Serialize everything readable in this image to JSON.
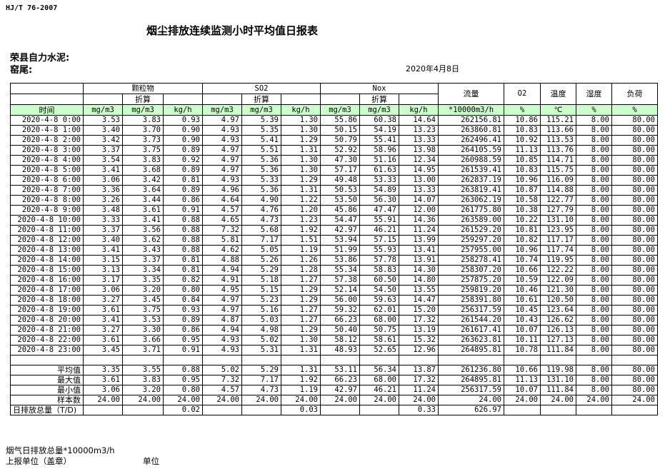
{
  "standard": "HJ/T  76-2007",
  "title": "烟尘排放连续监测小时平均值日报表",
  "company": "荣县自力水泥:",
  "kiln": "窑尾:",
  "date": "2020年4月8日",
  "header": {
    "particulate": "颗粒物",
    "so2": "SO2",
    "nox": "Nox",
    "converted": "折算",
    "flow": "流量",
    "o2": "O2",
    "temperature": "温度",
    "humidity": "湿度",
    "load": "负荷",
    "time": "时间",
    "units": [
      "mg/m3",
      "mg/m3",
      "kg/h",
      "mg/m3",
      "mg/m3",
      "kg/h",
      "mg/m3",
      "mg/m3",
      "kg/h",
      "*10000m3/h",
      "%",
      "℃",
      "%",
      "%"
    ]
  },
  "rows": [
    [
      "2020-4-8 0:00",
      "3.53",
      "3.83",
      "0.93",
      "4.97",
      "5.39",
      "1.30",
      "55.86",
      "60.38",
      "14.64",
      "262156.81",
      "10.86",
      "115.21",
      "8.00",
      "80.00"
    ],
    [
      "2020-4-8 1:00",
      "3.40",
      "3.70",
      "0.90",
      "4.93",
      "5.35",
      "1.30",
      "50.15",
      "54.19",
      "13.23",
      "263860.81",
      "10.83",
      "113.66",
      "8.00",
      "80.00"
    ],
    [
      "2020-4-8 2:00",
      "3.42",
      "3.73",
      "0.90",
      "4.93",
      "5.41",
      "1.29",
      "50.79",
      "55.41",
      "13.33",
      "262496.41",
      "10.92",
      "113.53",
      "8.00",
      "80.00"
    ],
    [
      "2020-4-8 3:00",
      "3.37",
      "3.75",
      "0.89",
      "4.97",
      "5.51",
      "1.31",
      "52.92",
      "58.96",
      "13.98",
      "264105.59",
      "11.13",
      "113.76",
      "8.00",
      "80.00"
    ],
    [
      "2020-4-8 4:00",
      "3.54",
      "3.83",
      "0.92",
      "4.97",
      "5.36",
      "1.30",
      "47.30",
      "51.16",
      "12.34",
      "260988.59",
      "10.85",
      "114.71",
      "8.00",
      "80.00"
    ],
    [
      "2020-4-8 5:00",
      "3.41",
      "3.68",
      "0.89",
      "4.97",
      "5.36",
      "1.30",
      "57.17",
      "61.63",
      "14.95",
      "261539.41",
      "10.83",
      "115.75",
      "8.00",
      "80.00"
    ],
    [
      "2020-4-8 6:00",
      "3.06",
      "3.42",
      "0.81",
      "4.93",
      "5.33",
      "1.29",
      "49.48",
      "53.33",
      "13.00",
      "262837.19",
      "10.96",
      "116.09",
      "8.00",
      "80.00"
    ],
    [
      "2020-4-8 7:00",
      "3.36",
      "3.64",
      "0.89",
      "4.96",
      "5.36",
      "1.31",
      "50.53",
      "54.89",
      "13.33",
      "263819.41",
      "10.87",
      "114.88",
      "8.00",
      "80.00"
    ],
    [
      "2020-4-8 8:00",
      "3.26",
      "3.44",
      "0.86",
      "4.64",
      "4.90",
      "1.22",
      "53.50",
      "56.30",
      "14.07",
      "263062.19",
      "10.58",
      "122.77",
      "8.00",
      "80.00"
    ],
    [
      "2020-4-8 9:00",
      "3.48",
      "3.61",
      "0.91",
      "4.57",
      "4.76",
      "1.20",
      "45.86",
      "47.47",
      "12.00",
      "261775.80",
      "10.38",
      "127.79",
      "8.00",
      "80.00"
    ],
    [
      "2020-4-8 10:00",
      "3.33",
      "3.41",
      "0.88",
      "4.65",
      "4.73",
      "1.23",
      "54.47",
      "55.91",
      "14.36",
      "263589.00",
      "10.22",
      "131.10",
      "8.00",
      "80.00"
    ],
    [
      "2020-4-8 11:00",
      "3.37",
      "3.56",
      "0.88",
      "7.32",
      "5.68",
      "1.92",
      "42.97",
      "46.21",
      "11.24",
      "261529.20",
      "10.81",
      "123.95",
      "8.00",
      "80.00"
    ],
    [
      "2020-4-8 12:00",
      "3.40",
      "3.62",
      "0.88",
      "5.81",
      "7.17",
      "1.51",
      "53.94",
      "57.15",
      "13.99",
      "259297.20",
      "10.82",
      "117.17",
      "8.00",
      "80.00"
    ],
    [
      "2020-4-8 13:00",
      "3.41",
      "3.43",
      "0.88",
      "4.62",
      "5.05",
      "1.19",
      "51.99",
      "55.93",
      "13.41",
      "257955.00",
      "10.96",
      "117.74",
      "8.00",
      "80.00"
    ],
    [
      "2020-4-8 14:00",
      "3.15",
      "3.37",
      "0.81",
      "4.88",
      "5.26",
      "1.26",
      "53.86",
      "57.78",
      "13.91",
      "258278.41",
      "10.74",
      "119.95",
      "8.00",
      "80.00"
    ],
    [
      "2020-4-8 15:00",
      "3.13",
      "3.34",
      "0.81",
      "4.94",
      "5.29",
      "1.28",
      "55.34",
      "58.83",
      "14.30",
      "258307.20",
      "10.66",
      "122.22",
      "8.00",
      "80.00"
    ],
    [
      "2020-4-8 16:00",
      "3.17",
      "3.35",
      "0.82",
      "4.91",
      "5.18",
      "1.27",
      "57.38",
      "60.50",
      "14.80",
      "257875.20",
      "10.59",
      "122.09",
      "8.00",
      "80.00"
    ],
    [
      "2020-4-8 17:00",
      "3.06",
      "3.20",
      "0.80",
      "4.95",
      "5.15",
      "1.29",
      "52.14",
      "54.50",
      "13.55",
      "259819.20",
      "10.46",
      "121.30",
      "8.00",
      "80.00"
    ],
    [
      "2020-4-8 18:00",
      "3.27",
      "3.45",
      "0.84",
      "4.97",
      "5.23",
      "1.29",
      "56.00",
      "59.63",
      "14.47",
      "258391.80",
      "10.61",
      "120.50",
      "8.00",
      "80.00"
    ],
    [
      "2020-4-8 19:00",
      "3.61",
      "3.75",
      "0.93",
      "4.97",
      "5.16",
      "1.27",
      "59.32",
      "62.01",
      "15.20",
      "256317.59",
      "10.45",
      "123.64",
      "8.00",
      "80.00"
    ],
    [
      "2020-4-8 20:00",
      "3.41",
      "3.53",
      "0.89",
      "4.87",
      "5.03",
      "1.27",
      "66.23",
      "68.00",
      "17.32",
      "261544.20",
      "10.43",
      "126.62",
      "8.00",
      "80.00"
    ],
    [
      "2020-4-8 21:00",
      "3.27",
      "3.30",
      "0.86",
      "4.94",
      "4.98",
      "1.29",
      "50.40",
      "50.75",
      "13.19",
      "261617.41",
      "10.07",
      "126.13",
      "8.00",
      "80.00"
    ],
    [
      "2020-4-8 22:00",
      "3.61",
      "3.66",
      "0.95",
      "4.93",
      "5.02",
      "1.30",
      "58.12",
      "58.61",
      "15.32",
      "263623.81",
      "10.11",
      "127.13",
      "8.00",
      "80.00"
    ],
    [
      "2020-4-8 23:00",
      "3.45",
      "3.71",
      "0.91",
      "4.93",
      "5.31",
      "1.31",
      "48.93",
      "52.65",
      "12.96",
      "264895.81",
      "10.78",
      "111.84",
      "8.00",
      "80.00"
    ]
  ],
  "summary": [
    [
      "平均值",
      "3.35",
      "3.55",
      "0.88",
      "5.02",
      "5.29",
      "1.31",
      "53.11",
      "56.34",
      "13.87",
      "261236.80",
      "10.66",
      "119.98",
      "8.00",
      "80.00"
    ],
    [
      "最大值",
      "3.61",
      "3.83",
      "0.95",
      "7.32",
      "7.17",
      "1.92",
      "66.23",
      "68.00",
      "17.32",
      "264895.81",
      "11.13",
      "131.10",
      "8.00",
      "80.00"
    ],
    [
      "最小值",
      "3.06",
      "3.20",
      "0.80",
      "4.57",
      "4.73",
      "1.19",
      "42.97",
      "46.21",
      "11.24",
      "256317.59",
      "10.07",
      "111.84",
      "8.00",
      "80.00"
    ],
    [
      "样本数",
      "24.00",
      "24.00",
      "24.00",
      "24.00",
      "24.00",
      "24.00",
      "24.00",
      "24.00",
      "24.00",
      "24.00",
      "24.00",
      "24.00",
      "24.00",
      "24.00"
    ],
    [
      "日排放总量（T/D)",
      "",
      "",
      "0.02",
      "",
      "",
      "0.03",
      "",
      "",
      "0.33",
      "626.97",
      "",
      "",
      "",
      ""
    ]
  ],
  "footer": {
    "flue_gas_total": "烟气日排放总量*10000m3/h",
    "reporting_unit": "上报单位（盖章）",
    "unit": "单位"
  },
  "colors": {
    "unit_row_bg": "#ccffcc"
  }
}
